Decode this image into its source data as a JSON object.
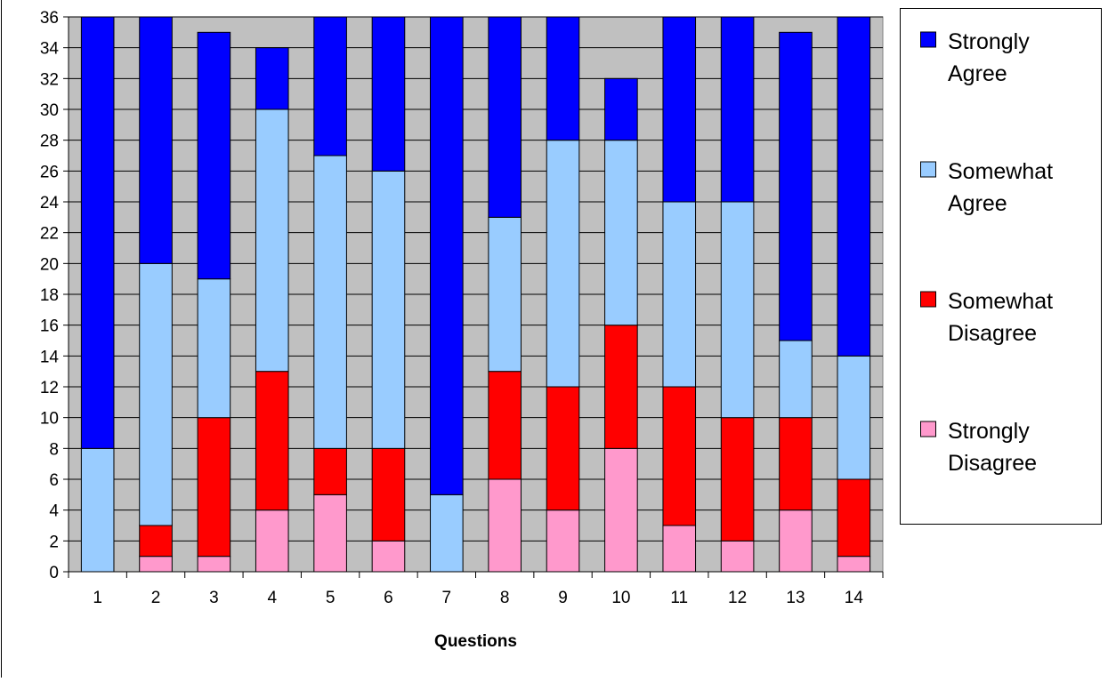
{
  "chart_data": {
    "type": "bar",
    "stacked": true,
    "categories": [
      "1",
      "2",
      "3",
      "4",
      "5",
      "6",
      "7",
      "8",
      "9",
      "10",
      "11",
      "12",
      "13",
      "14"
    ],
    "series": [
      {
        "name": "Strongly Disagree",
        "label_lines": [
          "Strongly",
          "Disagree"
        ],
        "color": "#ff99cc",
        "values": [
          0,
          1,
          1,
          4,
          5,
          2,
          0,
          6,
          4,
          8,
          3,
          2,
          4,
          1
        ]
      },
      {
        "name": "Somewhat Disagree",
        "label_lines": [
          "Somewhat",
          "Disagree"
        ],
        "color": "#ff0000",
        "values": [
          0,
          2,
          9,
          9,
          3,
          6,
          0,
          7,
          8,
          8,
          9,
          8,
          6,
          5
        ]
      },
      {
        "name": "Somewhat Agree",
        "label_lines": [
          "Somewhat",
          "Agree"
        ],
        "color": "#99ccff",
        "values": [
          8,
          17,
          9,
          17,
          19,
          18,
          5,
          10,
          16,
          12,
          12,
          14,
          5,
          8
        ]
      },
      {
        "name": "Strongly Agree",
        "label_lines": [
          "Strongly",
          "Agree"
        ],
        "color": "#0000ff",
        "values": [
          28,
          16,
          16,
          4,
          9,
          10,
          31,
          13,
          8,
          4,
          12,
          12,
          20,
          22
        ]
      }
    ],
    "xlabel": "Questions",
    "ylabel": "",
    "ylim": [
      0,
      36
    ],
    "yticks": [
      0,
      2,
      4,
      6,
      8,
      10,
      12,
      14,
      16,
      18,
      20,
      22,
      24,
      26,
      28,
      30,
      32,
      34,
      36
    ],
    "grid": true,
    "plot_background": "#c0c0c0",
    "legend_position": "right",
    "legend_order": [
      "Strongly Agree",
      "Somewhat Agree",
      "Somewhat Disagree",
      "Strongly Disagree"
    ]
  }
}
